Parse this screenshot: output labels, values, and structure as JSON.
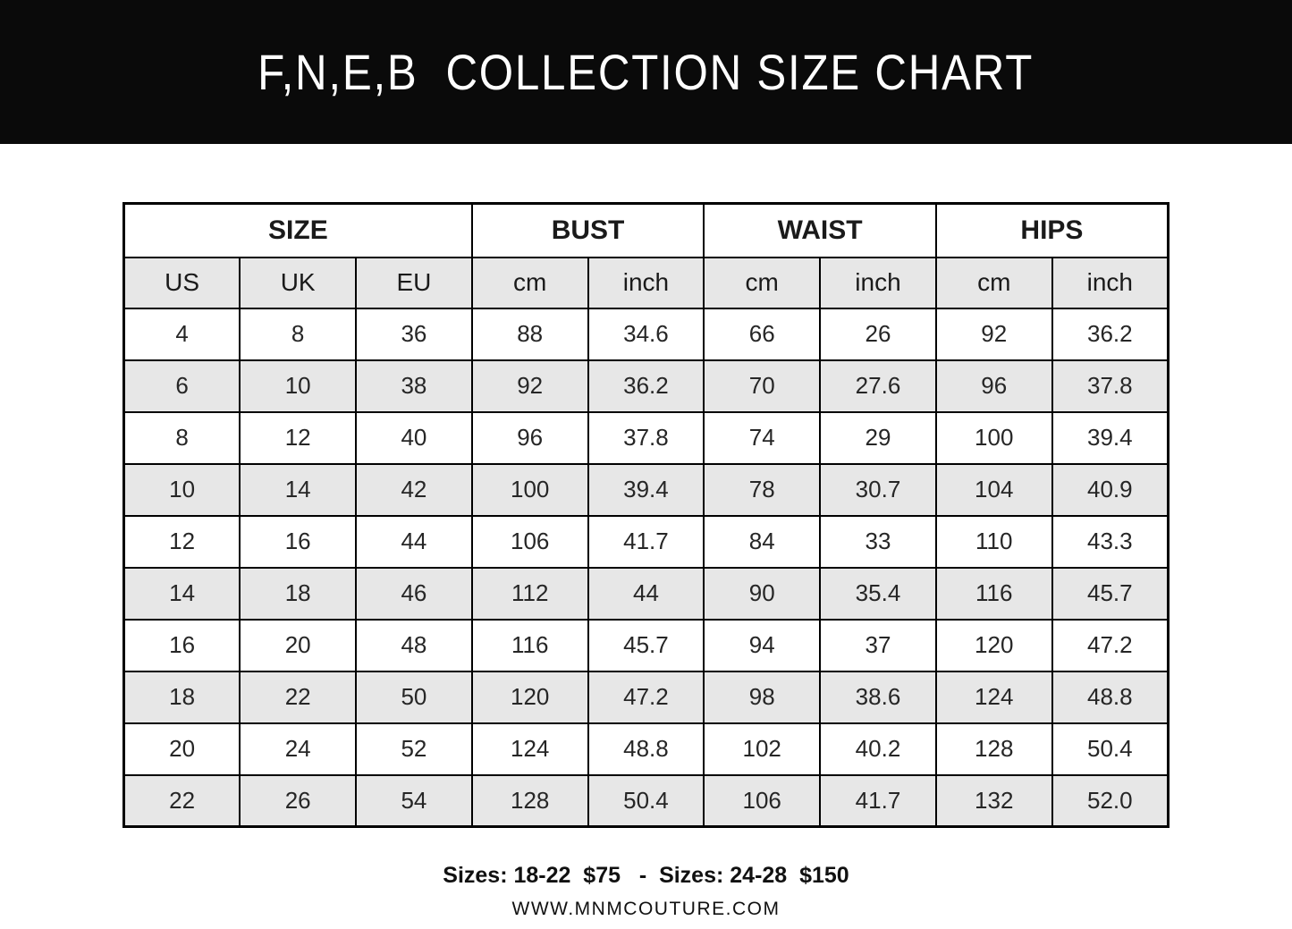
{
  "banner": {
    "title": "F,N,E,B  COLLECTION SIZE CHART"
  },
  "chart_data": {
    "type": "table",
    "title": "F,N,E,B COLLECTION SIZE CHART",
    "group_columns": [
      {
        "label": "SIZE",
        "span": 3
      },
      {
        "label": "BUST",
        "span": 2
      },
      {
        "label": "WAIST",
        "span": 2
      },
      {
        "label": "HIPS",
        "span": 2
      }
    ],
    "columns": [
      "US",
      "UK",
      "EU",
      "cm",
      "inch",
      "cm",
      "inch",
      "cm",
      "inch"
    ],
    "rows": [
      [
        "4",
        "8",
        "36",
        "88",
        "34.6",
        "66",
        "26",
        "92",
        "36.2"
      ],
      [
        "6",
        "10",
        "38",
        "92",
        "36.2",
        "70",
        "27.6",
        "96",
        "37.8"
      ],
      [
        "8",
        "12",
        "40",
        "96",
        "37.8",
        "74",
        "29",
        "100",
        "39.4"
      ],
      [
        "10",
        "14",
        "42",
        "100",
        "39.4",
        "78",
        "30.7",
        "104",
        "40.9"
      ],
      [
        "12",
        "16",
        "44",
        "106",
        "41.7",
        "84",
        "33",
        "110",
        "43.3"
      ],
      [
        "14",
        "18",
        "46",
        "112",
        "44",
        "90",
        "35.4",
        "116",
        "45.7"
      ],
      [
        "16",
        "20",
        "48",
        "116",
        "45.7",
        "94",
        "37",
        "120",
        "47.2"
      ],
      [
        "18",
        "22",
        "50",
        "120",
        "47.2",
        "98",
        "38.6",
        "124",
        "48.8"
      ],
      [
        "20",
        "24",
        "52",
        "124",
        "48.8",
        "102",
        "40.2",
        "128",
        "50.4"
      ],
      [
        "22",
        "26",
        "54",
        "128",
        "50.4",
        "106",
        "41.7",
        "132",
        "52.0"
      ]
    ],
    "layout_hints": {
      "striped_rows": true,
      "stripe_starts_on": "second_data_row",
      "grid": true
    }
  },
  "footer": {
    "pricing": "Sizes: 18-22  $75   -  Sizes: 24-28  $150",
    "website": "WWW.MNMCOUTURE.COM"
  },
  "colors": {
    "banner_bg": "#0a0a0a",
    "banner_text": "#ffffff",
    "row_alt_bg": "#e7e7e7",
    "border": "#000000",
    "text": "#262626"
  }
}
